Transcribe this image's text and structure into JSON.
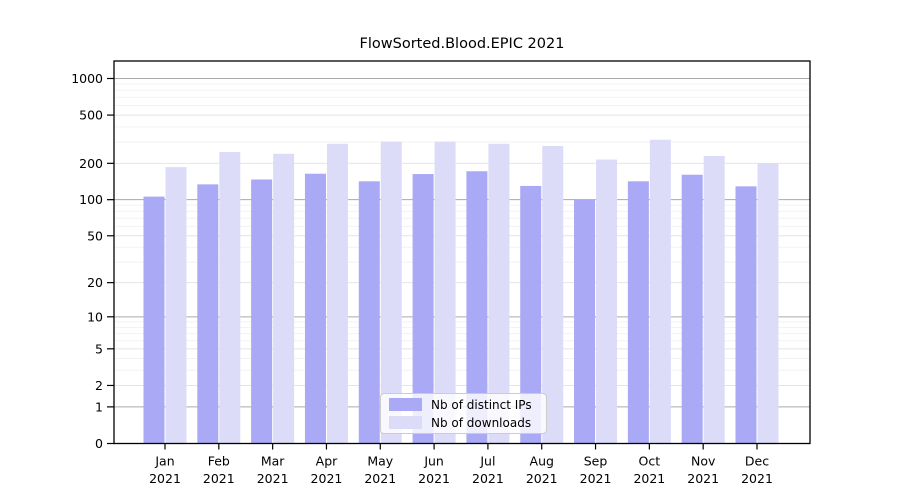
{
  "figure": {
    "background": "#ffffff"
  },
  "chart_data": {
    "type": "bar",
    "title": "FlowSorted.Blood.EPIC 2021",
    "categories": [
      "Jan",
      "Feb",
      "Mar",
      "Apr",
      "May",
      "Jun",
      "Jul",
      "Aug",
      "Sep",
      "Oct",
      "Nov",
      "Dec"
    ],
    "year": "2021",
    "series": [
      {
        "name": "Nb of distinct IPs",
        "color": "#a9a9f5",
        "values": [
          106,
          134,
          147,
          164,
          142,
          163,
          172,
          130,
          100,
          142,
          161,
          129
        ]
      },
      {
        "name": "Nb of downloads",
        "color": "#dcdcf8",
        "values": [
          186,
          248,
          240,
          290,
          302,
          302,
          290,
          278,
          215,
          313,
          230,
          200
        ]
      }
    ],
    "yscale": "log1p",
    "ylim": [
      0,
      1400
    ],
    "yticks": [
      0,
      1,
      2,
      5,
      10,
      20,
      50,
      100,
      200,
      500,
      1000
    ],
    "minor_yticks": [
      3,
      4,
      6,
      7,
      8,
      9,
      30,
      40,
      60,
      70,
      80,
      90,
      300,
      400,
      600,
      700,
      800,
      900
    ],
    "grid": "y",
    "legend_position": "lower center",
    "colors": {
      "axis": "#000000",
      "major_gridline": "#aaaaaa",
      "tick_gridline": "#e4e4e4",
      "minor_gridline": "#f2f2f2",
      "text": "#000000"
    }
  }
}
